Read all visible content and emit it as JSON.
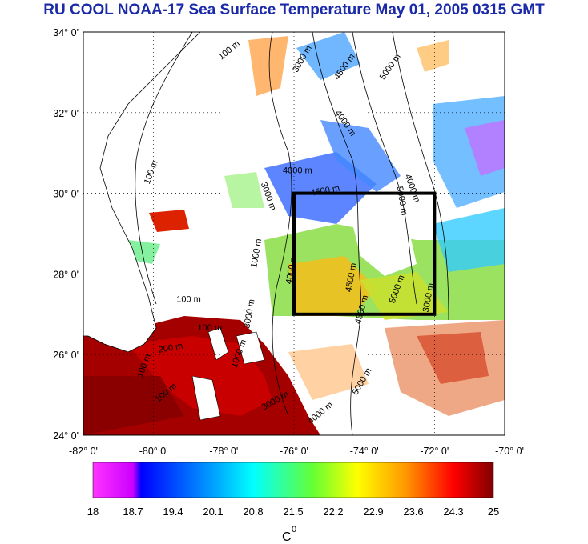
{
  "title": "RU COOL  NOAA-17 Sea Surface Temperature May 01, 2005 0315 GMT",
  "map": {
    "lon_range": [
      -82,
      -70
    ],
    "lat_range": [
      24,
      34
    ],
    "lat_ticks": [
      {
        "value": 34,
        "label": "34° 0'"
      },
      {
        "value": 32,
        "label": "32° 0'"
      },
      {
        "value": 30,
        "label": "30° 0'"
      },
      {
        "value": 28,
        "label": "28° 0'"
      },
      {
        "value": 26,
        "label": "26° 0'"
      },
      {
        "value": 24,
        "label": "24° 0'"
      }
    ],
    "lon_ticks": [
      {
        "value": -82,
        "label": "-82° 0'"
      },
      {
        "value": -80,
        "label": "-80° 0'"
      },
      {
        "value": -78,
        "label": "-78° 0'"
      },
      {
        "value": -76,
        "label": "-76° 0'"
      },
      {
        "value": -74,
        "label": "-74° 0'"
      },
      {
        "value": -72,
        "label": "-72° 0'"
      },
      {
        "value": -70,
        "label": "-70° 0'"
      }
    ],
    "study_box": {
      "lon_min": -76,
      "lon_max": -72,
      "lat_min": 27,
      "lat_max": 30
    },
    "contour_labels": [
      {
        "text": "100 m",
        "lon": -77.8,
        "lat": 33.5,
        "angle": -40
      },
      {
        "text": "3000 m",
        "lon": -75.7,
        "lat": 33.3,
        "angle": -60
      },
      {
        "text": "4500 m",
        "lon": -74.5,
        "lat": 33.1,
        "angle": -55
      },
      {
        "text": "5000 m",
        "lon": -73.2,
        "lat": 33.1,
        "angle": -55
      },
      {
        "text": "100 m",
        "lon": -80.0,
        "lat": 30.5,
        "angle": -70
      },
      {
        "text": "4000 m",
        "lon": -74.6,
        "lat": 31.7,
        "angle": 55
      },
      {
        "text": "3000 m",
        "lon": -76.8,
        "lat": 29.9,
        "angle": 70
      },
      {
        "text": "4000 m",
        "lon": -75.9,
        "lat": 30.5,
        "angle": 0
      },
      {
        "text": "4500 m",
        "lon": -75.1,
        "lat": 30.0,
        "angle": -10
      },
      {
        "text": "4000 m",
        "lon": -72.7,
        "lat": 30.1,
        "angle": 70
      },
      {
        "text": "5000 m",
        "lon": -73.0,
        "lat": 29.8,
        "angle": 80
      },
      {
        "text": "4500 m",
        "lon": -74.3,
        "lat": 27.9,
        "angle": -80
      },
      {
        "text": "5000 m",
        "lon": -73.0,
        "lat": 27.6,
        "angle": -70
      },
      {
        "text": "1000 m",
        "lon": -77.0,
        "lat": 28.5,
        "angle": -80
      },
      {
        "text": "4000 m",
        "lon": -76.0,
        "lat": 28.1,
        "angle": -80
      },
      {
        "text": "4500 m",
        "lon": -74.0,
        "lat": 27.1,
        "angle": -75
      },
      {
        "text": "3000 m",
        "lon": -72.1,
        "lat": 27.4,
        "angle": -80
      },
      {
        "text": "100 m",
        "lon": -79.0,
        "lat": 27.3,
        "angle": 0
      },
      {
        "text": "100 m",
        "lon": -78.4,
        "lat": 26.6,
        "angle": 0
      },
      {
        "text": "200 m",
        "lon": -79.5,
        "lat": 26.1,
        "angle": -10
      },
      {
        "text": "100 m",
        "lon": -80.2,
        "lat": 25.7,
        "angle": -70
      },
      {
        "text": "100 m",
        "lon": -79.6,
        "lat": 25.0,
        "angle": -40
      },
      {
        "text": "3000 m",
        "lon": -76.5,
        "lat": 24.8,
        "angle": -30
      },
      {
        "text": "4000 m",
        "lon": -75.2,
        "lat": 24.5,
        "angle": -40
      },
      {
        "text": "5000 m",
        "lon": -74.0,
        "lat": 25.3,
        "angle": -60
      },
      {
        "text": "1000 m",
        "lon": -77.5,
        "lat": 26.0,
        "angle": -70
      },
      {
        "text": "3000 m",
        "lon": -77.2,
        "lat": 27.0,
        "angle": -80
      }
    ]
  },
  "colorbar": {
    "vmin": 18,
    "vmax": 25,
    "tick_labels": [
      "18",
      "18.7",
      "19.4",
      "20.1",
      "20.8",
      "21.5",
      "22.2",
      "22.9",
      "23.6",
      "24.3",
      "25"
    ],
    "unit_label": "C",
    "unit_superscript": "0",
    "stops": [
      {
        "offset": 0.0,
        "color": "#ff33ff"
      },
      {
        "offset": 0.1,
        "color": "#cc00ff"
      },
      {
        "offset": 0.12,
        "color": "#0000ff"
      },
      {
        "offset": 0.3,
        "color": "#00a0ff"
      },
      {
        "offset": 0.4,
        "color": "#00ffff"
      },
      {
        "offset": 0.55,
        "color": "#66ff33"
      },
      {
        "offset": 0.66,
        "color": "#ffff00"
      },
      {
        "offset": 0.78,
        "color": "#ff9900"
      },
      {
        "offset": 0.9,
        "color": "#ff0000"
      },
      {
        "offset": 1.0,
        "color": "#800000"
      }
    ]
  }
}
